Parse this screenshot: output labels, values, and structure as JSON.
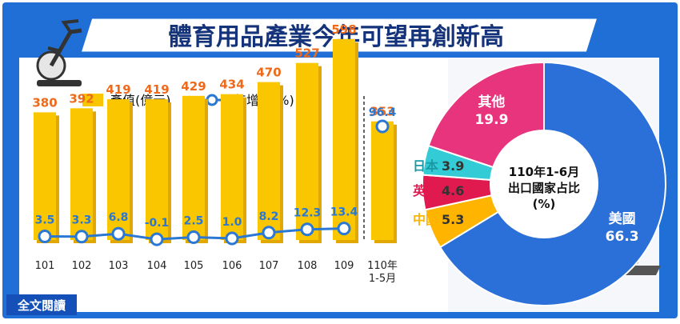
{
  "title": "體育用品產業今年可望再創新高",
  "footer_link": "全文閱讀",
  "colors": {
    "frame_blue": "#1f6fd6",
    "title_navy": "#14337a",
    "bar_yellow": "#f9c600",
    "bar_label_orange": "#ee6a1a",
    "line_blue": "#2a78d4",
    "pie_blue": "#2b6fd8",
    "pie_magenta": "#e8347c",
    "pie_cyan": "#33ccd6",
    "pie_red": "#e01a4f",
    "pie_orange": "#ffb400"
  },
  "chart_data": [
    {
      "type": "bar",
      "legend": [
        "產值(億元)",
        "年增率(%)"
      ],
      "categories": [
        "101",
        "102",
        "103",
        "104",
        "105",
        "106",
        "107",
        "108",
        "109",
        "110年\n1-5月"
      ],
      "series": [
        {
          "name": "產值(億元)",
          "type": "bar",
          "values": [
            380,
            392,
            419,
            419,
            429,
            434,
            470,
            527,
            598,
            353
          ],
          "labels": [
            "380",
            "392",
            "419",
            "419",
            "429",
            "434",
            "470",
            "527",
            "598",
            "353"
          ]
        },
        {
          "name": "年增率(%)",
          "type": "line",
          "values": [
            3.5,
            3.3,
            6.8,
            -0.1,
            2.5,
            1.0,
            8.2,
            12.3,
            13.4,
            96.4
          ],
          "labels": [
            "3.5",
            "3.3",
            "6.8",
            "-0.1",
            "2.5",
            "1.0",
            "8.2",
            "12.3",
            "13.4",
            "96.4"
          ]
        }
      ]
    },
    {
      "type": "pie",
      "title": "110年1-6月\n出口國家占比\n(%)",
      "slices": [
        {
          "name": "美國",
          "value": 66.3,
          "label": "66.3"
        },
        {
          "name": "中國",
          "value": 5.3,
          "label": "5.3"
        },
        {
          "name": "英國",
          "value": 4.6,
          "label": "4.6"
        },
        {
          "name": "日本",
          "value": 3.9,
          "label": "3.9"
        },
        {
          "name": "其他",
          "value": 19.9,
          "label": "19.9"
        }
      ]
    }
  ]
}
